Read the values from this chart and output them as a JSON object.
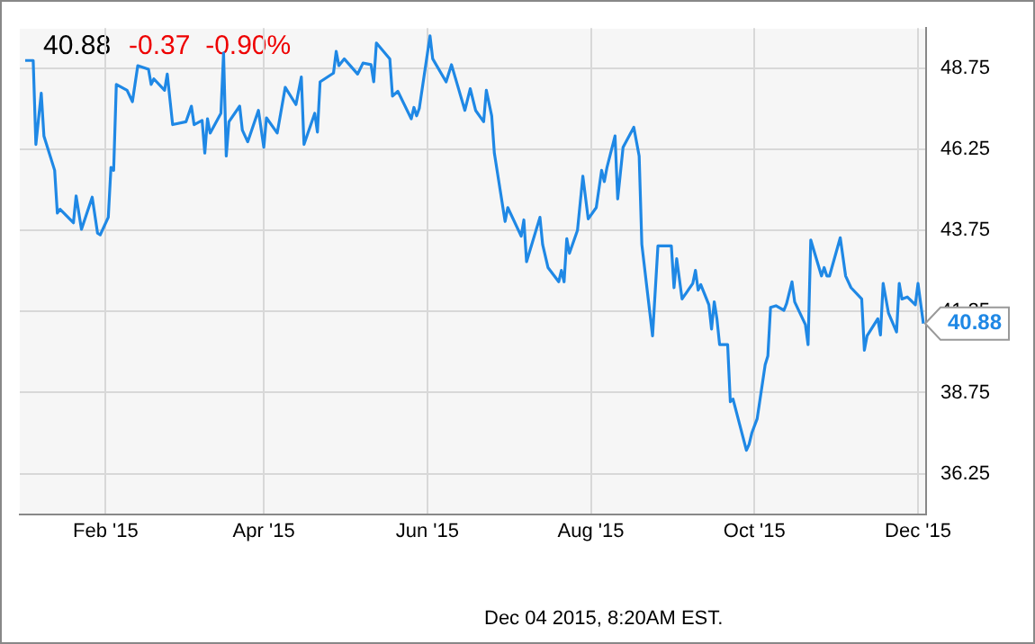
{
  "chart_data": {
    "type": "line",
    "title": "40.88",
    "subtitle": "-0.37  -0.90%",
    "x": [
      "2015-01-02",
      "2015-01-05",
      "2015-01-06",
      "2015-01-08",
      "2015-01-09",
      "2015-01-13",
      "2015-01-14",
      "2015-01-15",
      "2015-01-20",
      "2015-01-21",
      "2015-01-23",
      "2015-01-27",
      "2015-01-29",
      "2015-01-30",
      "2015-02-02",
      "2015-02-03",
      "2015-02-04",
      "2015-02-05",
      "2015-02-09",
      "2015-02-11",
      "2015-02-13",
      "2015-02-17",
      "2015-02-18",
      "2015-02-19",
      "2015-02-23",
      "2015-02-24",
      "2015-02-26",
      "2015-03-03",
      "2015-03-05",
      "2015-03-06",
      "2015-03-09",
      "2015-03-10",
      "2015-03-11",
      "2015-03-12",
      "2015-03-16",
      "2015-03-17",
      "2015-03-18",
      "2015-03-19",
      "2015-03-23",
      "2015-03-24",
      "2015-03-26",
      "2015-03-30",
      "2015-04-01",
      "2015-04-02",
      "2015-04-06",
      "2015-04-09",
      "2015-04-13",
      "2015-04-15",
      "2015-04-16",
      "2015-04-20",
      "2015-04-21",
      "2015-04-22",
      "2015-04-27",
      "2015-04-28",
      "2015-04-29",
      "2015-05-01",
      "2015-05-06",
      "2015-05-08",
      "2015-05-11",
      "2015-05-12",
      "2015-05-13",
      "2015-05-18",
      "2015-05-19",
      "2015-05-21",
      "2015-05-26",
      "2015-05-27",
      "2015-05-28",
      "2015-05-29",
      "2015-06-02",
      "2015-06-03",
      "2015-06-08",
      "2015-06-10",
      "2015-06-15",
      "2015-06-17",
      "2015-06-19",
      "2015-06-22",
      "2015-06-23",
      "2015-06-25",
      "2015-06-26",
      "2015-06-30",
      "2015-07-01",
      "2015-07-06",
      "2015-07-07",
      "2015-07-08",
      "2015-07-13",
      "2015-07-14",
      "2015-07-16",
      "2015-07-20",
      "2015-07-21",
      "2015-07-22",
      "2015-07-23",
      "2015-07-24",
      "2015-07-27",
      "2015-07-29",
      "2015-07-31",
      "2015-08-03",
      "2015-08-05",
      "2015-08-06",
      "2015-08-07",
      "2015-08-10",
      "2015-08-11",
      "2015-08-13",
      "2015-08-17",
      "2015-08-19",
      "2015-08-20",
      "2015-08-24",
      "2015-08-26",
      "2015-08-31",
      "2015-09-01",
      "2015-09-02",
      "2015-09-04",
      "2015-09-08",
      "2015-09-09",
      "2015-09-10",
      "2015-09-11",
      "2015-09-14",
      "2015-09-15",
      "2015-09-16",
      "2015-09-17",
      "2015-09-18",
      "2015-09-21",
      "2015-09-22",
      "2015-09-23",
      "2015-09-28",
      "2015-09-29",
      "2015-09-30",
      "2015-10-02",
      "2015-10-05",
      "2015-10-06",
      "2015-10-07",
      "2015-10-09",
      "2015-10-12",
      "2015-10-13",
      "2015-10-15",
      "2015-10-16",
      "2015-10-20",
      "2015-10-21",
      "2015-10-22",
      "2015-10-26",
      "2015-10-27",
      "2015-10-28",
      "2015-10-29",
      "2015-11-02",
      "2015-11-04",
      "2015-11-06",
      "2015-11-10",
      "2015-11-11",
      "2015-11-12",
      "2015-11-16",
      "2015-11-17",
      "2015-11-18",
      "2015-11-20",
      "2015-11-23",
      "2015-11-24",
      "2015-11-25",
      "2015-11-27",
      "2015-11-30",
      "2015-12-01",
      "2015-12-03"
    ],
    "series": [
      {
        "color": "#1f88e5",
        "values": [
          49.0,
          49.0,
          46.41,
          47.99,
          46.67,
          45.61,
          44.29,
          44.41,
          43.99,
          44.82,
          43.79,
          44.78,
          43.67,
          43.62,
          44.16,
          45.7,
          45.61,
          48.26,
          48.08,
          47.73,
          48.84,
          48.73,
          48.26,
          48.43,
          48.08,
          48.58,
          47.02,
          47.11,
          47.59,
          47.02,
          47.15,
          46.14,
          47.2,
          46.76,
          47.37,
          49.23,
          46.05,
          47.11,
          47.59,
          46.85,
          46.49,
          47.46,
          46.32,
          47.23,
          46.76,
          48.17,
          47.64,
          48.49,
          46.41,
          47.37,
          46.79,
          48.34,
          48.61,
          49.28,
          48.84,
          49.05,
          48.58,
          48.92,
          48.87,
          48.34,
          49.54,
          49.05,
          47.9,
          48.05,
          47.2,
          47.55,
          47.29,
          47.52,
          49.76,
          49.05,
          48.34,
          48.87,
          47.46,
          48.13,
          47.46,
          47.11,
          48.08,
          47.29,
          46.14,
          44.03,
          44.46,
          43.58,
          44.08,
          42.79,
          44.16,
          43.32,
          42.61,
          42.17,
          42.52,
          42.17,
          43.5,
          43.05,
          43.76,
          45.43,
          44.11,
          44.46,
          45.61,
          45.26,
          45.7,
          46.67,
          44.73,
          46.32,
          46.94,
          46.05,
          43.32,
          40.5,
          43.28,
          43.28,
          41.99,
          42.88,
          41.64,
          42.12,
          42.52,
          41.91,
          42.08,
          41.46,
          40.71,
          41.55,
          41.03,
          40.23,
          40.23,
          38.47,
          38.55,
          36.97,
          37.15,
          37.5,
          37.94,
          39.61,
          39.88,
          41.38,
          41.43,
          41.29,
          41.5,
          42.17,
          41.55,
          40.85,
          40.23,
          43.46,
          42.35,
          42.61,
          42.35,
          42.35,
          43.53,
          42.35,
          41.99,
          41.64,
          40.06,
          40.5,
          41.03,
          40.53,
          42.12,
          41.2,
          40.62,
          42.12,
          41.64,
          41.7,
          41.46,
          42.12,
          40.88
        ]
      }
    ],
    "xlim": [
      "2014-12-31",
      "2015-12-04"
    ],
    "xticks": [
      {
        "value": "2015-02-01",
        "label": "Feb '15"
      },
      {
        "value": "2015-04-01",
        "label": "Apr '15"
      },
      {
        "value": "2015-06-01",
        "label": "Jun '15"
      },
      {
        "value": "2015-08-01",
        "label": "Aug '15"
      },
      {
        "value": "2015-10-01",
        "label": "Oct '15"
      },
      {
        "value": "2015-12-01",
        "label": "Dec '15"
      }
    ],
    "ylim": [
      35,
      50
    ],
    "yticks": [
      36.25,
      38.75,
      41.25,
      43.75,
      46.25,
      48.75
    ],
    "grid": true,
    "legend": false,
    "marker": "none",
    "line_style": "solid",
    "annotations": [
      "Dec 04 2015, 8:20AM EST.",
      {
        "text": "40.88",
        "x": "2015-12-03",
        "y": 40.88
      }
    ]
  }
}
